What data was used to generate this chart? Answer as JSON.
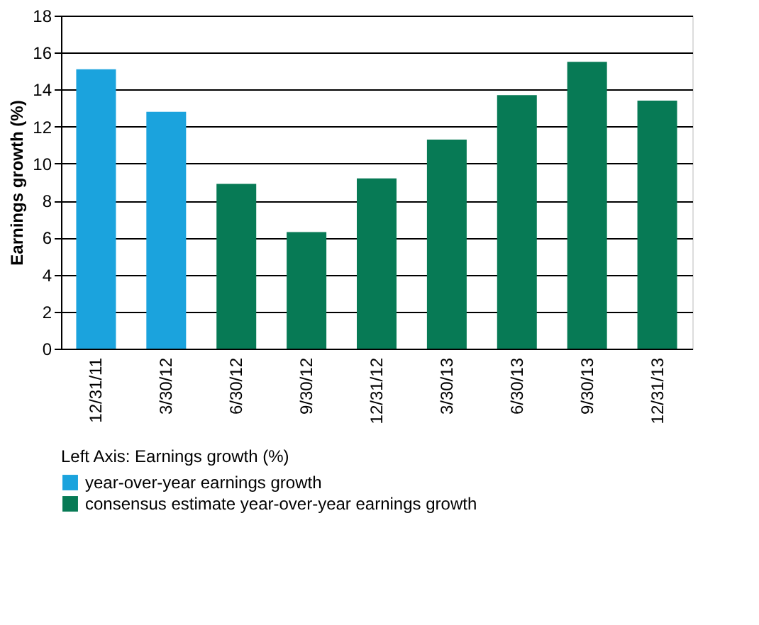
{
  "chart_data": {
    "type": "bar",
    "ylabel": "Earnings growth (%)",
    "legend_title": "Left Axis: Earnings growth (%)",
    "categories": [
      "12/31/11",
      "3/30/12",
      "6/30/12",
      "9/30/12",
      "12/31/12",
      "3/30/13",
      "6/30/13",
      "9/30/13",
      "12/31/13"
    ],
    "series": [
      {
        "name": "year-over-year earnings growth",
        "color": "#1ba3dd",
        "values": [
          15.1,
          12.8,
          null,
          null,
          null,
          null,
          null,
          null,
          null
        ]
      },
      {
        "name": "consensus estimate year-over-year earnings growth",
        "color": "#077a55",
        "values": [
          null,
          null,
          8.9,
          6.3,
          9.2,
          11.3,
          13.7,
          15.5,
          13.4
        ]
      }
    ],
    "ylim": [
      0,
      18
    ],
    "yticks": [
      0,
      2,
      4,
      6,
      8,
      10,
      12,
      14,
      16,
      18
    ],
    "grid": "y",
    "legend": "bottom"
  }
}
